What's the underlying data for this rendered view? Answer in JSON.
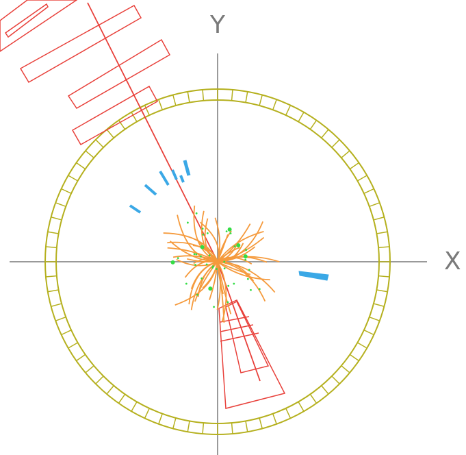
{
  "axes": {
    "x_label": "X",
    "y_label": "Y"
  },
  "colors": {
    "axis": "#9a9a9a",
    "detector_ring": "#b5b01e",
    "muon": "#e8403a",
    "track": "#f59a3c",
    "hit": "#33dd44",
    "calo_deposit": "#3aa8e6",
    "background": "#ffffff"
  },
  "detector": {
    "ring_segments": 72
  },
  "tracks": {
    "count": 48
  },
  "hits": {
    "count": 40
  }
}
